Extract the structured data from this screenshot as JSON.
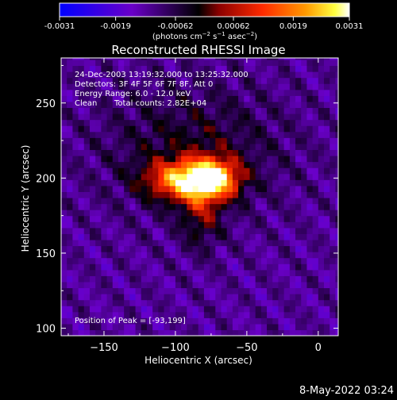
{
  "chart_data": {
    "type": "heatmap",
    "title": "Reconstructed RHESSI Image",
    "xlabel": "Heliocentric X (arcsec)",
    "ylabel": "Heliocentric Y (arcsec)",
    "xlim": [
      -180,
      14
    ],
    "ylim": [
      95,
      280
    ],
    "x_ticks": [
      -150,
      -100,
      -50,
      0
    ],
    "y_ticks": [
      100,
      150,
      200,
      250
    ],
    "colorbar": {
      "ticks": [
        -0.0031,
        -0.0019,
        -0.00062,
        0.00062,
        0.0019,
        0.0031
      ],
      "range": [
        -0.0031,
        0.0031
      ],
      "unit_label": "(photons cm-2 s-1 asec-2)",
      "colormap": [
        "#0000ff",
        "#6a00c8",
        "#000000",
        "#8b0000",
        "#ff2a00",
        "#ff9a00",
        "#ffff40",
        "#ffffff"
      ]
    },
    "annotations": {
      "time_range": "24-Dec-2003 13:19:32.000 to 13:25:32.000",
      "detectors": "Detectors: 3F 4F 5F 6F 7F 8F, Att 0",
      "energy_range": "Energy Range: 6.0 - 12.0 keV",
      "method": "Clean",
      "total_counts": "Total counts: 2.82E+04",
      "peak": "Position of Peak = [-93,199]"
    },
    "peak_position": [
      -93,
      199
    ],
    "sources": [
      {
        "x": -93,
        "y": 199,
        "amplitude": 0.0031,
        "sx": 18,
        "sy": 9
      },
      {
        "x": -72,
        "y": 200,
        "amplitude": 0.0026,
        "sx": 12,
        "sy": 9
      },
      {
        "x": -82,
        "y": 180,
        "amplitude": 0.0012,
        "sx": 10,
        "sy": 18
      },
      {
        "x": -88,
        "y": 220,
        "amplitude": 0.0009,
        "sx": 45,
        "sy": 30
      }
    ]
  },
  "footer": {
    "date_stamp": "8-May-2022 03:24"
  }
}
